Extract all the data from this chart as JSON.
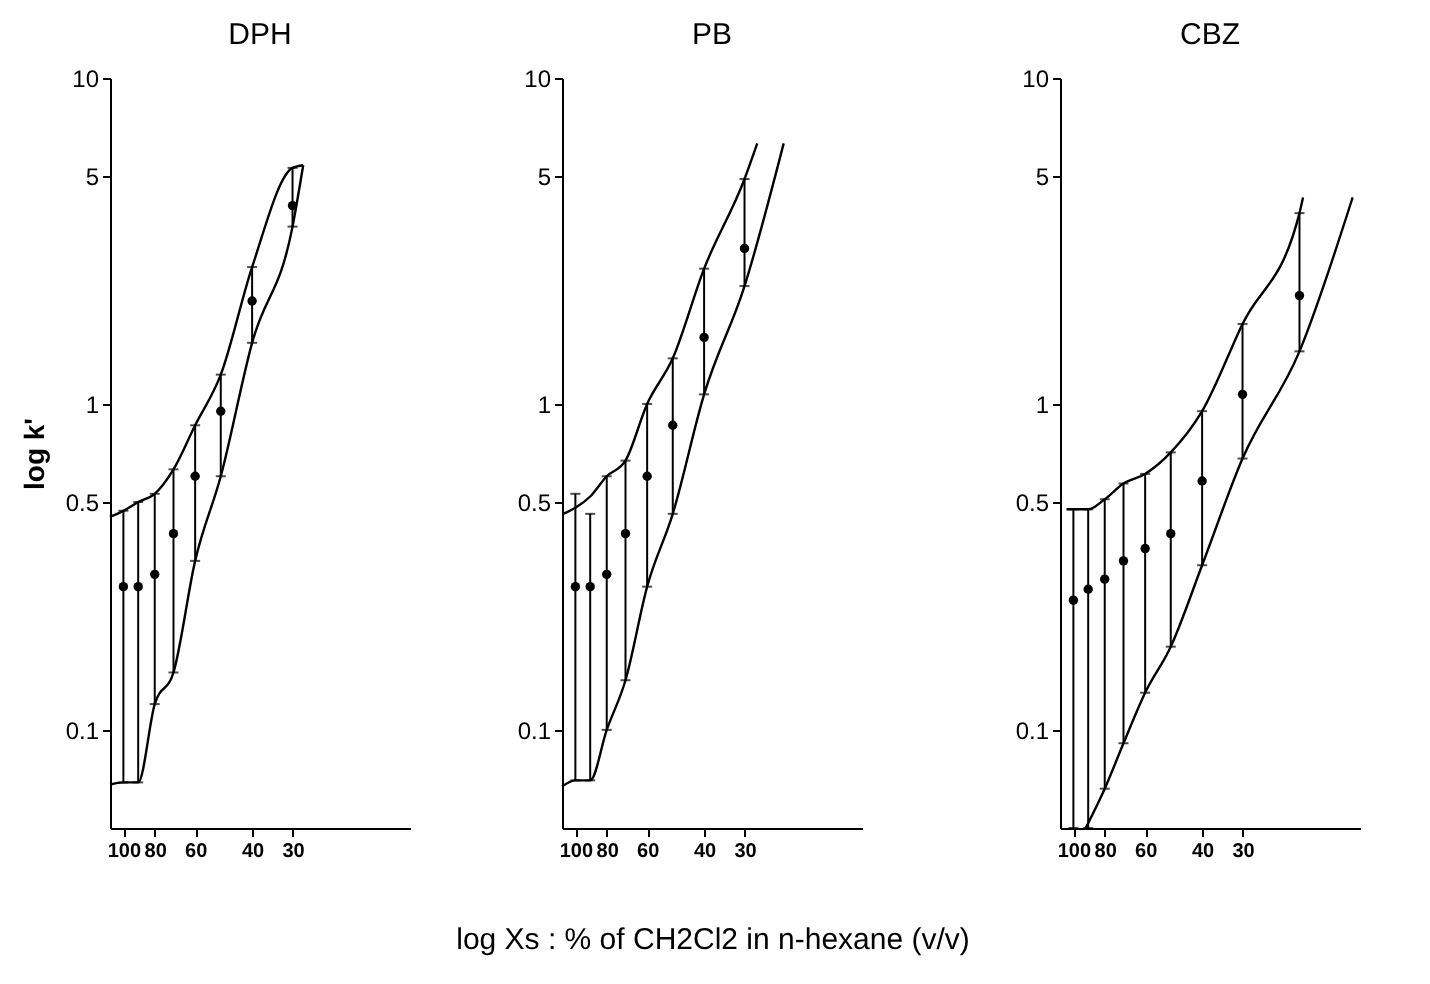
{
  "chart_data": [
    {
      "type": "scatter",
      "title": "DPH",
      "ylabel": "log k'",
      "x": [
        100,
        90,
        80,
        70,
        60,
        50,
        40,
        30
      ],
      "xlim": [
        110,
        13
      ],
      "xticks": [
        100,
        80,
        60,
        40,
        30
      ],
      "ylim": [
        0.05,
        10
      ],
      "yticks": [
        0.1,
        0.5,
        1,
        5,
        10
      ],
      "log": "xy",
      "grid": false,
      "series": [
        {
          "type": "scatter",
          "marker": "circle",
          "color": "#000000",
          "values": [
            0.275,
            0.275,
            0.3,
            0.4,
            0.6,
            0.95,
            2.07,
            4.06
          ],
          "errors": [
            [
              0.069,
              0.47
            ],
            [
              0.069,
              0.5
            ],
            [
              0.12,
              0.53
            ],
            [
              0.15,
              0.63
            ],
            [
              0.33,
              0.86
            ],
            [
              0.6,
              1.23
            ],
            [
              1.54,
              2.63
            ],
            [
              3.5,
              5.3
            ]
          ]
        },
        {
          "type": "line",
          "color": "#000000",
          "line_style": "solid",
          "x": [
            110,
            100,
            90,
            80,
            70,
            60,
            50,
            40,
            30,
            27.8
          ],
          "values": [
            0.45,
            0.47,
            0.5,
            0.53,
            0.63,
            0.86,
            1.23,
            2.63,
            5.3,
            5.4
          ]
        },
        {
          "type": "line",
          "color": "#000000",
          "line_style": "solid",
          "x": [
            110,
            100,
            90,
            80,
            70,
            60,
            50,
            40,
            30,
            27.8
          ],
          "values": [
            0.068,
            0.069,
            0.069,
            0.12,
            0.15,
            0.33,
            0.6,
            1.54,
            3.5,
            5.4
          ]
        }
      ]
    },
    {
      "type": "scatter",
      "title": "PB",
      "xlabel": "log Xs : % of CH2Cl2 in n-hexane (v/v)",
      "x": [
        100,
        90,
        80,
        70,
        60,
        50,
        40,
        30
      ],
      "xlim": [
        110,
        13
      ],
      "xticks": [
        100,
        80,
        60,
        40,
        30
      ],
      "ylim": [
        0.05,
        10
      ],
      "yticks": [
        0.1,
        0.5,
        1,
        5,
        10
      ],
      "log": "xy",
      "grid": false,
      "series": [
        {
          "type": "scatter",
          "marker": "circle",
          "color": "#000000",
          "values": [
            0.275,
            0.275,
            0.3,
            0.4,
            0.6,
            0.86,
            1.6,
            3.0
          ],
          "errors": [
            [
              0.07,
              0.53
            ],
            [
              0.07,
              0.46
            ],
            [
              0.1,
              0.6
            ],
            [
              0.142,
              0.67
            ],
            [
              0.275,
              1.0
            ],
            [
              0.46,
              1.38
            ],
            [
              1.07,
              2.6
            ],
            [
              2.3,
              4.9
            ]
          ]
        },
        {
          "type": "line",
          "color": "#000000",
          "line_style": "solid",
          "x": [
            109,
            100,
            90,
            80,
            70,
            60,
            50,
            40,
            30,
            27.4
          ],
          "values": [
            0.46,
            0.48,
            0.52,
            0.6,
            0.67,
            1.0,
            1.38,
            2.6,
            4.9,
            6.3
          ]
        },
        {
          "type": "line",
          "color": "#000000",
          "line_style": "solid",
          "x": [
            110,
            100,
            90,
            80,
            70,
            60,
            50,
            40,
            30,
            22.7
          ],
          "values": [
            0.067,
            0.07,
            0.07,
            0.1,
            0.142,
            0.275,
            0.46,
            1.07,
            2.3,
            6.3
          ]
        }
      ]
    },
    {
      "type": "scatter",
      "title": "CBZ",
      "x": [
        100,
        90,
        80,
        70,
        60,
        50,
        40,
        30,
        20
      ],
      "xlim": [
        110,
        13
      ],
      "xticks": [
        100,
        80,
        60,
        40,
        30
      ],
      "ylim": [
        0.05,
        10
      ],
      "yticks": [
        0.1,
        0.5,
        1,
        5,
        10
      ],
      "log": "xy",
      "grid": false,
      "series": [
        {
          "type": "scatter",
          "marker": "circle",
          "color": "#000000",
          "values": [
            0.25,
            0.27,
            0.29,
            0.33,
            0.36,
            0.4,
            0.58,
            1.07,
            2.15
          ],
          "errors": [
            [
              0.05,
              0.475
            ],
            [
              0.05,
              0.475
            ],
            [
              0.066,
              0.51
            ],
            [
              0.091,
              0.57
            ],
            [
              0.13,
              0.61
            ],
            [
              0.18,
              0.71
            ],
            [
              0.32,
              0.95
            ],
            [
              0.68,
              1.76
            ],
            [
              1.45,
              3.85
            ]
          ]
        },
        {
          "type": "line",
          "color": "#000000",
          "line_style": "solid",
          "x": [
            105,
            100,
            90,
            80,
            70,
            60,
            50,
            40,
            30,
            20,
            19.5
          ],
          "values": [
            0.475,
            0.475,
            0.475,
            0.51,
            0.57,
            0.61,
            0.71,
            0.95,
            1.76,
            3.85,
            4.3
          ]
        },
        {
          "type": "line",
          "color": "#000000",
          "line_style": "solid",
          "x": [
            91.6,
            80,
            70,
            60,
            50,
            40,
            30,
            20,
            13.7
          ],
          "values": [
            0.05,
            0.066,
            0.091,
            0.13,
            0.18,
            0.32,
            0.68,
            1.45,
            4.3
          ]
        }
      ]
    }
  ]
}
